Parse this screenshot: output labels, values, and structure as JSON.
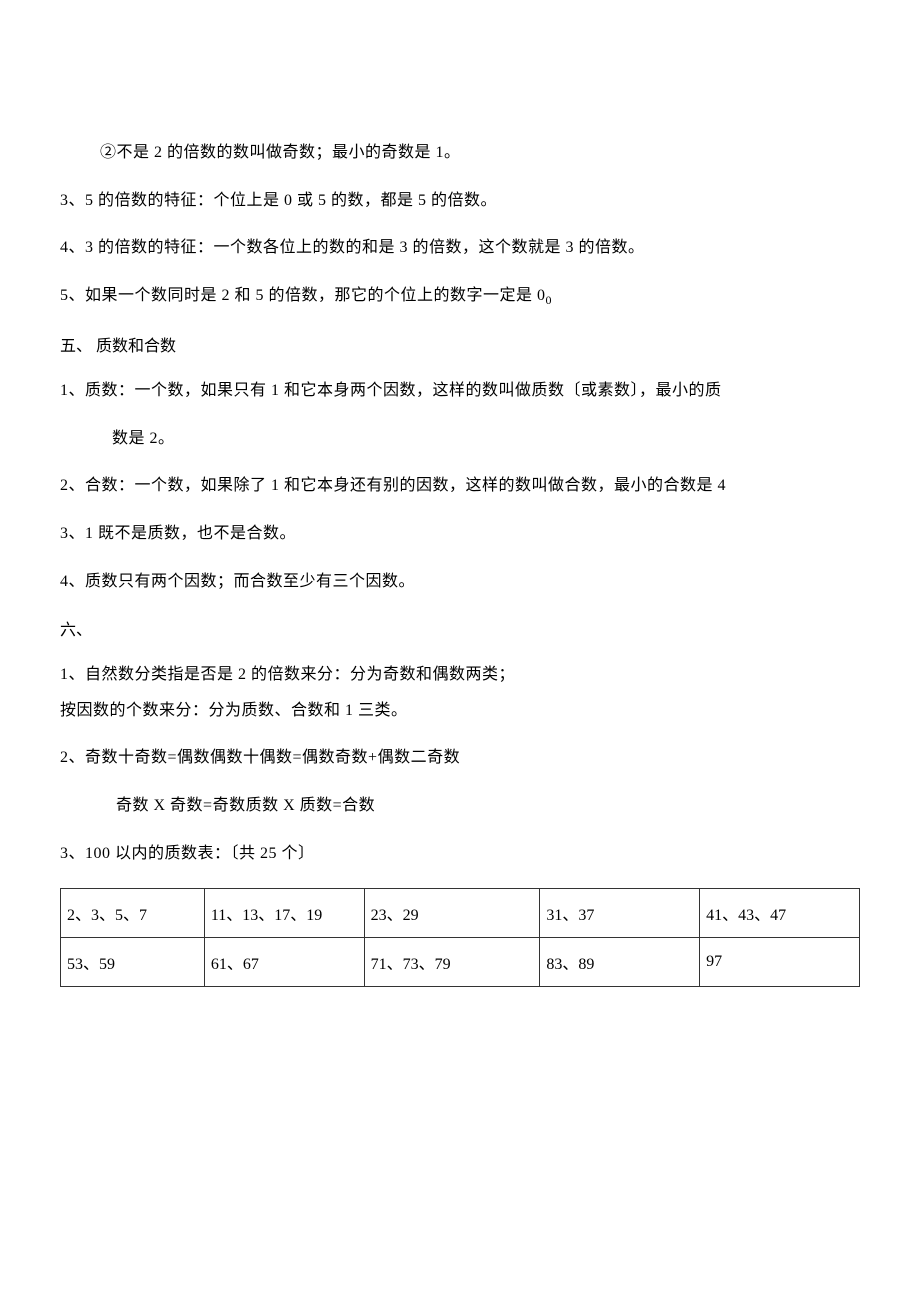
{
  "lines": {
    "l1": "②不是 2 的倍数的数叫做奇数；最小的奇数是 1。",
    "l2": "3、5 的倍数的特征：个位上是 0 或 5 的数，都是 5 的倍数。",
    "l3": "4、3 的倍数的特征：一个数各位上的数的和是 3 的倍数，这个数就是 3 的倍数。",
    "l4_a": "5、如果一个数同时是 2 和 5 的倍数，那它的个位上的数字一定是 0",
    "l4_b": "0",
    "sec5": "五、 质数和合数",
    "l5": "1、质数：一个数，如果只有 1 和它本身两个因数，这样的数叫做质数〔或素数〕，最小的质",
    "l5b": "数是 2。",
    "l6": "2、合数：一个数，如果除了 1 和它本身还有别的因数，这样的数叫做合数，最小的合数是 4",
    "l7": "3、1 既不是质数，也不是合数。",
    "l8": "4、质数只有两个因数；而合数至少有三个因数。",
    "sec6": "六、",
    "l9": "1、自然数分类指是否是 2 的倍数来分：分为奇数和偶数两类；",
    "l9b": "按因数的个数来分：分为质数、合数和 1 三类。",
    "l10": "2、奇数十奇数=偶数偶数十偶数=偶数奇数+偶数二奇数",
    "l10b": "奇数 X 奇数=奇数质数 X 质数=合数",
    "l11": "3、100 以内的质数表：〔共 25 个〕"
  },
  "table": {
    "rows": [
      [
        "2、3、5、7",
        "11、13、17、19",
        "23、29",
        "31、37",
        "41、43、47"
      ],
      [
        "53、59",
        "61、67",
        "71、73、79",
        "83、89",
        "97"
      ]
    ]
  }
}
